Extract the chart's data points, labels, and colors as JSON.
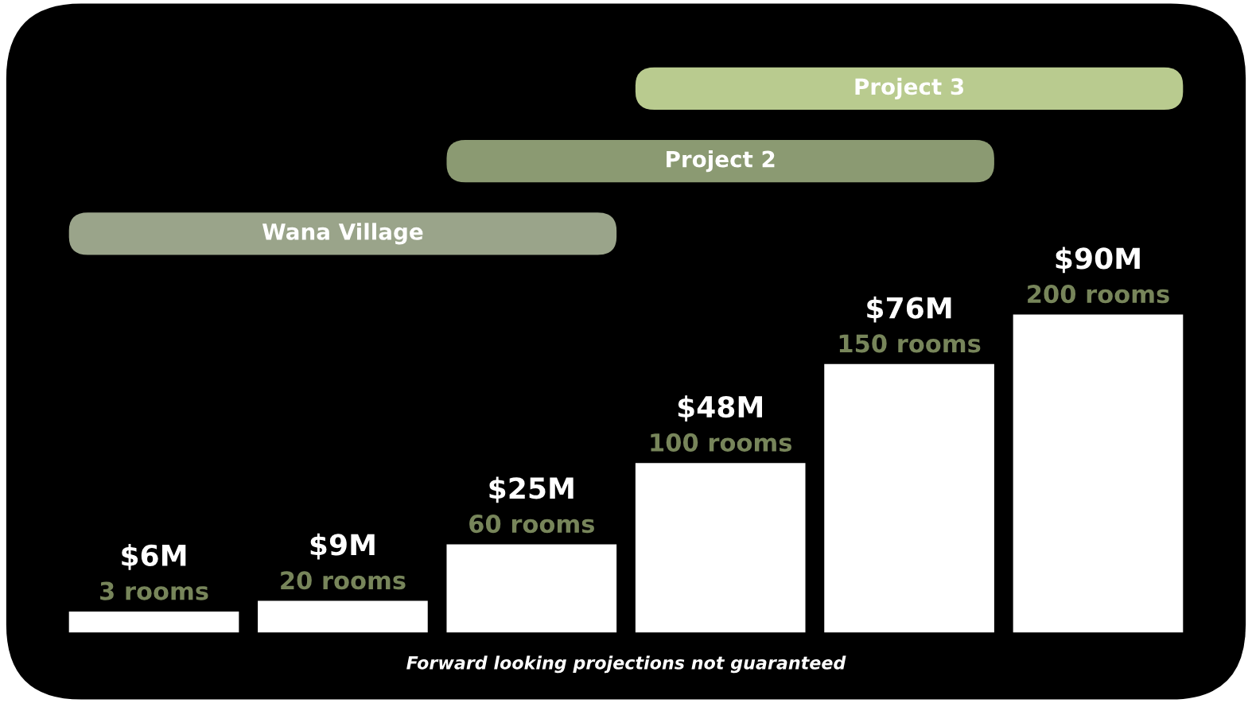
{
  "chart_data": {
    "type": "bar",
    "categories": [
      null,
      null,
      null,
      null,
      null,
      null
    ],
    "values": [
      6,
      9,
      25,
      48,
      76,
      90
    ],
    "color": "#ffffff",
    "value_labels": [
      "$6M",
      "$9M",
      "$25M",
      "$48M",
      "$76M",
      "$90M"
    ],
    "annotations": [
      {
        "text": "3 rooms",
        "y": 6
      },
      {
        "text": "20 rooms",
        "y": 9
      },
      {
        "text": "60 rooms",
        "y": 25
      },
      {
        "text": "100 rooms",
        "y": 48
      },
      {
        "text": "150 rooms",
        "y": 76
      },
      {
        "text": "200 rooms",
        "y": 90
      },
      "Wana Village",
      "Project 2",
      "Project 3",
      "Forward looking projections not guaranteed"
    ]
  }
}
